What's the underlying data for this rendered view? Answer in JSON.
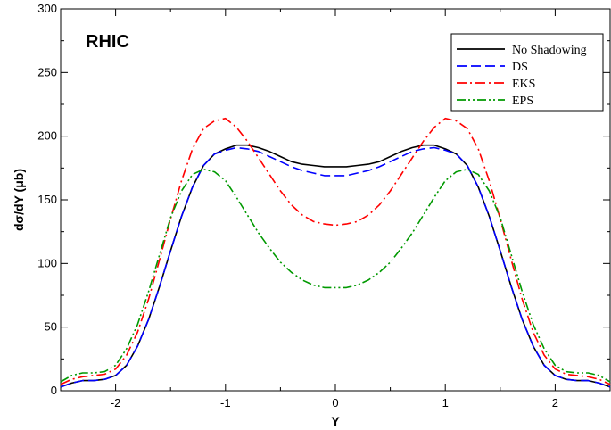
{
  "chart_data": {
    "type": "line",
    "annotation": "RHIC",
    "xlabel": "Y",
    "ylabel": "dσ/dY (μb)",
    "xlim": [
      -2.5,
      2.5
    ],
    "ylim": [
      0,
      300
    ],
    "xticks": [
      -2,
      -1,
      0,
      1,
      2
    ],
    "xtick_labels": [
      "-2",
      "-1",
      "0",
      "1",
      "2"
    ],
    "yticks": [
      0,
      50,
      100,
      150,
      200,
      250,
      300
    ],
    "ytick_labels": [
      "0",
      "50",
      "100",
      "150",
      "200",
      "250",
      "300"
    ],
    "grid": false,
    "legend_position": "top-right",
    "x": [
      -2.5,
      -2.4,
      -2.3,
      -2.2,
      -2.1,
      -2.0,
      -1.9,
      -1.8,
      -1.7,
      -1.6,
      -1.5,
      -1.4,
      -1.3,
      -1.2,
      -1.1,
      -1.0,
      -0.9,
      -0.8,
      -0.7,
      -0.6,
      -0.5,
      -0.4,
      -0.3,
      -0.2,
      -0.1,
      0.0,
      0.1,
      0.2,
      0.3,
      0.4,
      0.5,
      0.6,
      0.7,
      0.8,
      0.9,
      1.0,
      1.1,
      1.2,
      1.3,
      1.4,
      1.5,
      1.6,
      1.7,
      1.8,
      1.9,
      2.0,
      2.1,
      2.2,
      2.3,
      2.4,
      2.5
    ],
    "series": [
      {
        "name": "No Shadowing",
        "color": "#000000",
        "dash": "solid",
        "values": [
          3,
          6,
          8,
          8,
          9,
          12,
          20,
          35,
          56,
          82,
          110,
          137,
          160,
          177,
          186,
          190,
          193,
          193,
          191,
          188,
          184,
          180,
          178,
          177,
          176,
          176,
          176,
          177,
          178,
          180,
          184,
          188,
          191,
          193,
          193,
          190,
          186,
          177,
          160,
          137,
          110,
          82,
          56,
          35,
          20,
          12,
          9,
          8,
          8,
          6,
          3
        ]
      },
      {
        "name": "DS",
        "color": "#0000ff",
        "dash": "dashed",
        "values": [
          3,
          6,
          8,
          8,
          9,
          12,
          20,
          35,
          56,
          82,
          110,
          137,
          160,
          177,
          186,
          189,
          191,
          190,
          188,
          184,
          180,
          176,
          173,
          171,
          169,
          169,
          169,
          171,
          173,
          176,
          180,
          184,
          188,
          190,
          191,
          189,
          186,
          177,
          160,
          137,
          110,
          82,
          56,
          35,
          20,
          12,
          9,
          8,
          8,
          6,
          3
        ]
      },
      {
        "name": "EKS",
        "color": "#ff0000",
        "dash": "dashdot",
        "values": [
          5,
          9,
          11,
          12,
          13,
          17,
          28,
          46,
          72,
          103,
          135,
          165,
          190,
          206,
          212,
          214,
          207,
          196,
          183,
          170,
          157,
          146,
          138,
          133,
          131,
          130,
          131,
          133,
          138,
          146,
          157,
          170,
          183,
          196,
          207,
          214,
          212,
          206,
          190,
          165,
          135,
          103,
          72,
          46,
          28,
          17,
          13,
          12,
          11,
          9,
          5
        ]
      },
      {
        "name": "EPS",
        "color": "#009900",
        "dash": "dashdotdot",
        "values": [
          7,
          12,
          14,
          14,
          15,
          20,
          33,
          52,
          78,
          107,
          136,
          157,
          170,
          174,
          172,
          165,
          152,
          138,
          124,
          112,
          101,
          93,
          87,
          83,
          81,
          81,
          81,
          83,
          87,
          93,
          101,
          112,
          124,
          138,
          152,
          165,
          172,
          174,
          170,
          157,
          136,
          107,
          78,
          52,
          33,
          20,
          15,
          14,
          14,
          12,
          7
        ]
      }
    ]
  }
}
